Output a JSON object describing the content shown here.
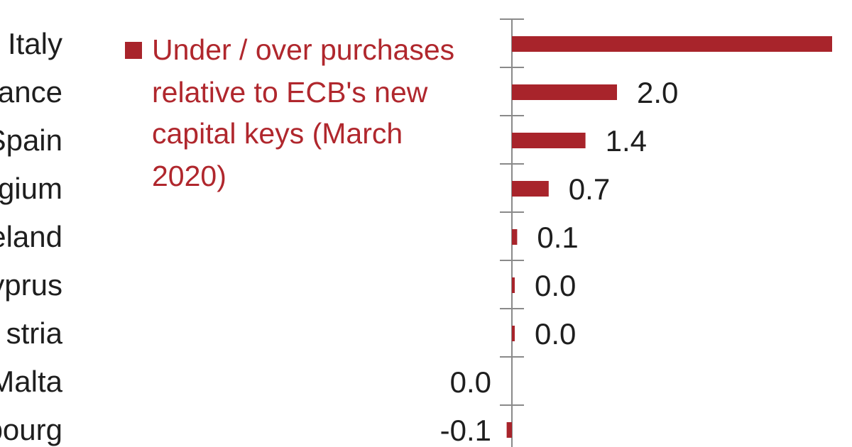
{
  "chart_data": {
    "type": "bar",
    "orientation": "horizontal",
    "categories": [
      "Italy",
      "France",
      "Spain",
      "Belgium",
      "Ireland",
      "Cyprus",
      "Austria",
      "Malta",
      "Luxembourg"
    ],
    "visible_category_text": [
      "Italy",
      "ance",
      "Spain",
      "gium",
      "eland",
      "yprus",
      "stria",
      "Malta",
      "bourg"
    ],
    "series": [
      {
        "name": "Under / over purchases relative to ECB's new capital keys (March 2020)",
        "values": [
          null,
          2.0,
          1.4,
          0.7,
          0.1,
          0.0,
          0.0,
          0.0,
          -0.1
        ],
        "value_labels": [
          "",
          "2.0",
          "1.4",
          "0.7",
          "0.1",
          "0.0",
          "0.0",
          "0.0",
          "-0.1"
        ],
        "color": "#a8242b"
      }
    ],
    "legend": {
      "lines": [
        "Under / over purchases",
        "relative to ECB's new",
        "capital keys (March",
        "2020)"
      ],
      "color": "#b0272d",
      "position": "top-left"
    },
    "grid": false
  }
}
